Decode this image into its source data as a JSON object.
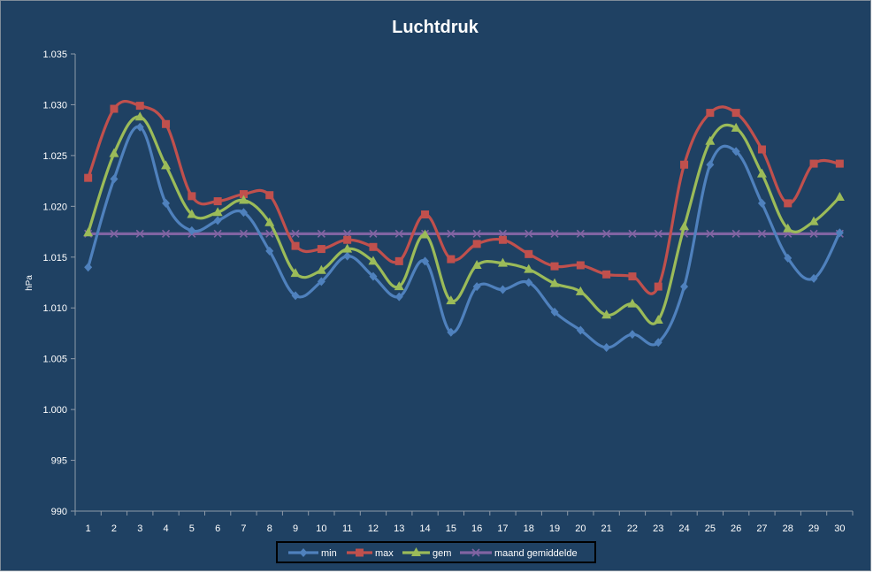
{
  "chart_data": {
    "type": "line",
    "title": "Luchtdruk",
    "xlabel": "",
    "ylabel": "hPa",
    "ylim": [
      990,
      1035
    ],
    "yticks": [
      "990",
      "995",
      "1.000",
      "1.005",
      "1.010",
      "1.015",
      "1.020",
      "1.025",
      "1.030",
      "1.035"
    ],
    "ytick_values": [
      990,
      995,
      1000,
      1005,
      1010,
      1015,
      1020,
      1025,
      1030,
      1035
    ],
    "categories": [
      "1",
      "2",
      "3",
      "4",
      "5",
      "6",
      "7",
      "8",
      "9",
      "10",
      "11",
      "12",
      "13",
      "14",
      "15",
      "16",
      "17",
      "18",
      "19",
      "20",
      "21",
      "22",
      "23",
      "24",
      "25",
      "26",
      "27",
      "28",
      "29",
      "30"
    ],
    "grid": false,
    "legend_position": "bottom",
    "series": [
      {
        "name": "min",
        "color": "#4f81bd",
        "marker": "diamond",
        "values": [
          1014.0,
          1022.7,
          1027.8,
          1020.3,
          1017.6,
          1018.6,
          1019.4,
          1015.6,
          1011.2,
          1012.6,
          1015.1,
          1013.1,
          1011.1,
          1014.6,
          1007.6,
          1012.1,
          1011.8,
          1012.5,
          1009.6,
          1007.8,
          1006.1,
          1007.4,
          1006.6,
          1012.1,
          1024.1,
          1025.4,
          1020.3,
          1014.9,
          1012.9,
          1017.4
        ]
      },
      {
        "name": "max",
        "color": "#c0504d",
        "marker": "square",
        "values": [
          1022.8,
          1029.6,
          1029.9,
          1028.1,
          1021.0,
          1020.5,
          1021.2,
          1021.1,
          1016.1,
          1015.8,
          1016.7,
          1016.0,
          1014.6,
          1019.2,
          1014.8,
          1016.3,
          1016.7,
          1015.3,
          1014.1,
          1014.2,
          1013.3,
          1013.1,
          1012.1,
          1024.1,
          1029.2,
          1029.2,
          1025.6,
          1020.3,
          1024.2,
          1024.2
        ]
      },
      {
        "name": "gem",
        "color": "#9bbb59",
        "marker": "triangle",
        "values": [
          1017.4,
          1025.2,
          1028.8,
          1024.0,
          1019.2,
          1019.4,
          1020.6,
          1018.4,
          1013.4,
          1013.7,
          1015.8,
          1014.6,
          1012.1,
          1017.2,
          1010.7,
          1014.2,
          1014.4,
          1013.8,
          1012.4,
          1011.6,
          1009.3,
          1010.4,
          1008.8,
          1018.0,
          1026.4,
          1027.7,
          1023.2,
          1017.8,
          1018.5,
          1020.9
        ]
      },
      {
        "name": "maand gemiddelde",
        "color": "#8064a2",
        "marker": "x",
        "values": [
          1017.3,
          1017.3,
          1017.3,
          1017.3,
          1017.3,
          1017.3,
          1017.3,
          1017.3,
          1017.3,
          1017.3,
          1017.3,
          1017.3,
          1017.3,
          1017.3,
          1017.3,
          1017.3,
          1017.3,
          1017.3,
          1017.3,
          1017.3,
          1017.3,
          1017.3,
          1017.3,
          1017.3,
          1017.3,
          1017.3,
          1017.3,
          1017.3,
          1017.3,
          1017.3
        ]
      }
    ]
  }
}
